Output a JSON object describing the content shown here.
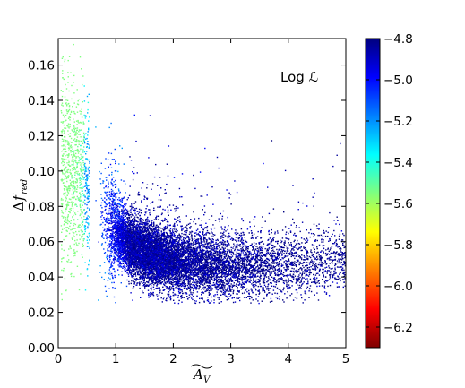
{
  "chart_data": {
    "type": "scatter",
    "title": "",
    "xlabel": "Ã_V",
    "ylabel": "Δf_red",
    "xlim": [
      0,
      5
    ],
    "ylim": [
      0,
      0.175
    ],
    "x_ticks": [
      "0",
      "1",
      "2",
      "3",
      "4",
      "5"
    ],
    "y_ticks": [
      "0.00",
      "0.02",
      "0.04",
      "0.06",
      "0.08",
      "0.10",
      "0.12",
      "0.14",
      "0.16"
    ],
    "annotation": "Log ℒ",
    "grid": false,
    "legend": "none",
    "colorbar": {
      "label": "Log ℒ",
      "range": [
        -6.3,
        -4.8
      ],
      "ticks": [
        "−4.8",
        "−5.0",
        "−5.2",
        "−5.4",
        "−5.6",
        "−5.8",
        "−6.0",
        "−6.2"
      ],
      "colormap": "jet"
    },
    "point_count_estimate": 12000,
    "ridge": {
      "description": "dense band of points",
      "x": [
        0.3,
        0.5,
        0.7,
        1.0,
        1.3,
        1.6,
        2.0,
        2.5,
        3.0,
        4.0,
        5.0
      ],
      "y": [
        0.098,
        0.09,
        0.078,
        0.066,
        0.057,
        0.052,
        0.049,
        0.047,
        0.046,
        0.047,
        0.05
      ]
    },
    "colors": {
      "high": "#00007f",
      "mid": "#7fff7f",
      "low": "#7f0000"
    }
  }
}
